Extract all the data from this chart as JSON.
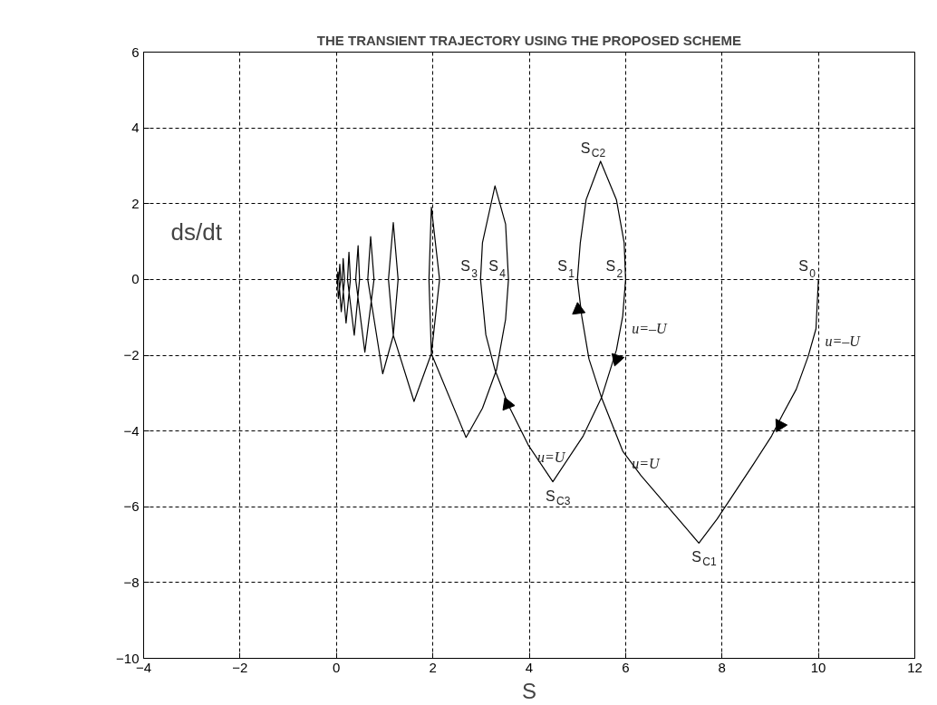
{
  "chart_data": {
    "type": "line",
    "title": "THE TRANSIENT TRAJECTORY USING THE PROPOSED SCHEME",
    "xlabel": "S",
    "ylabel": "ds/dt",
    "xlim": [
      -4,
      12
    ],
    "ylim": [
      -10,
      6
    ],
    "xticks": [
      -4,
      -2,
      0,
      2,
      4,
      6,
      8,
      10,
      12
    ],
    "yticks": [
      -10,
      -8,
      -6,
      -4,
      -2,
      0,
      2,
      4,
      6
    ],
    "grid": true,
    "line_style": "solid",
    "marker": "none",
    "series": [
      {
        "color": "#000000",
        "x": [
          10,
          9.95,
          9.79,
          9.54,
          9.26,
          9.03,
          8.66,
          8.28,
          7.9,
          7.52,
          7.2,
          6.76,
          6.32,
          5.94,
          5.5,
          5.24,
          5.09,
          5.0,
          5.06,
          5.18,
          5.48,
          5.81,
          5.97,
          6.0,
          5.94,
          5.81,
          5.5,
          5.12,
          4.49,
          3.98,
          3.57,
          3.29,
          3.1,
          2.99,
          3.03,
          3.29,
          3.51,
          3.57,
          3.51,
          3.32,
          3.03,
          2.69,
          1.97,
          1.92,
          1.97,
          2.14,
          1.97,
          1.61,
          1.18,
          1.08,
          1.18,
          1.28,
          1.18,
          0.96,
          0.65,
          0.71,
          0.78,
          0.59,
          0.4,
          0.45,
          0.48,
          0.37,
          0.23,
          0.26,
          0.29,
          0.2,
          0.12,
          0.14,
          0.17,
          0.1,
          0.05,
          0.07,
          0.09,
          0.04,
          0.02,
          0.03,
          0.04,
          0
        ],
        "values": [
          0,
          -1.3,
          -2.02,
          -2.9,
          -3.56,
          -4.13,
          -4.86,
          -5.59,
          -6.32,
          -6.96,
          -6.48,
          -5.83,
          -5.18,
          -4.53,
          -3.12,
          -2.1,
          -0.97,
          0,
          0.97,
          2.1,
          3.12,
          2.1,
          0.97,
          0,
          -0.97,
          -1.86,
          -3.12,
          -4.13,
          -5.34,
          -4.37,
          -3.32,
          -2.39,
          -1.46,
          0,
          0.97,
          2.47,
          1.46,
          0,
          -1.05,
          -2.39,
          -3.4,
          -4.17,
          -1.96,
          0,
          1.91,
          0,
          -1.96,
          -3.22,
          -1.47,
          0,
          1.5,
          0,
          -1.48,
          -2.49,
          0,
          1.13,
          0,
          -1.92,
          0,
          0.89,
          0,
          -1.47,
          0,
          0.72,
          0,
          -1.15,
          0,
          0.55,
          0,
          -0.85,
          0,
          0.4,
          0,
          -0.5,
          0,
          0.2,
          0,
          0
        ]
      },
      {
        "type": "scatter",
        "marker": "triangle",
        "color": "#000000",
        "x": [
          5.02,
          5.82,
          3.55,
          9.2
        ],
        "values": [
          -0.8,
          -2.1,
          -3.3,
          -3.85
        ]
      }
    ],
    "annotations": [
      {
        "text": "S$_{0}$",
        "x": 10,
        "y": 0
      },
      {
        "text": "S$_{C1}$",
        "x": 7.52,
        "y": -6.96
      },
      {
        "text": "S$_{C2}$",
        "x": 5.48,
        "y": 3.12
      },
      {
        "text": "S$_{1}$",
        "x": 5.0,
        "y": 0
      },
      {
        "text": "S$_{2}$",
        "x": 6.0,
        "y": 0
      },
      {
        "text": "S$_{3}$",
        "x": 2.99,
        "y": 0
      },
      {
        "text": "S$_{4}$",
        "x": 3.57,
        "y": 0
      },
      {
        "text": "S$_{C3}$",
        "x": 4.49,
        "y": -5.34
      },
      {
        "text": "u=–U",
        "x": 5.94,
        "y": -0.97
      },
      {
        "text": "u=–U",
        "x": 9.95,
        "y": -1.3
      },
      {
        "text": "u=U",
        "x": 5.94,
        "y": -4.53
      },
      {
        "text": "u=U",
        "x": 3.98,
        "y": -4.37
      }
    ]
  }
}
